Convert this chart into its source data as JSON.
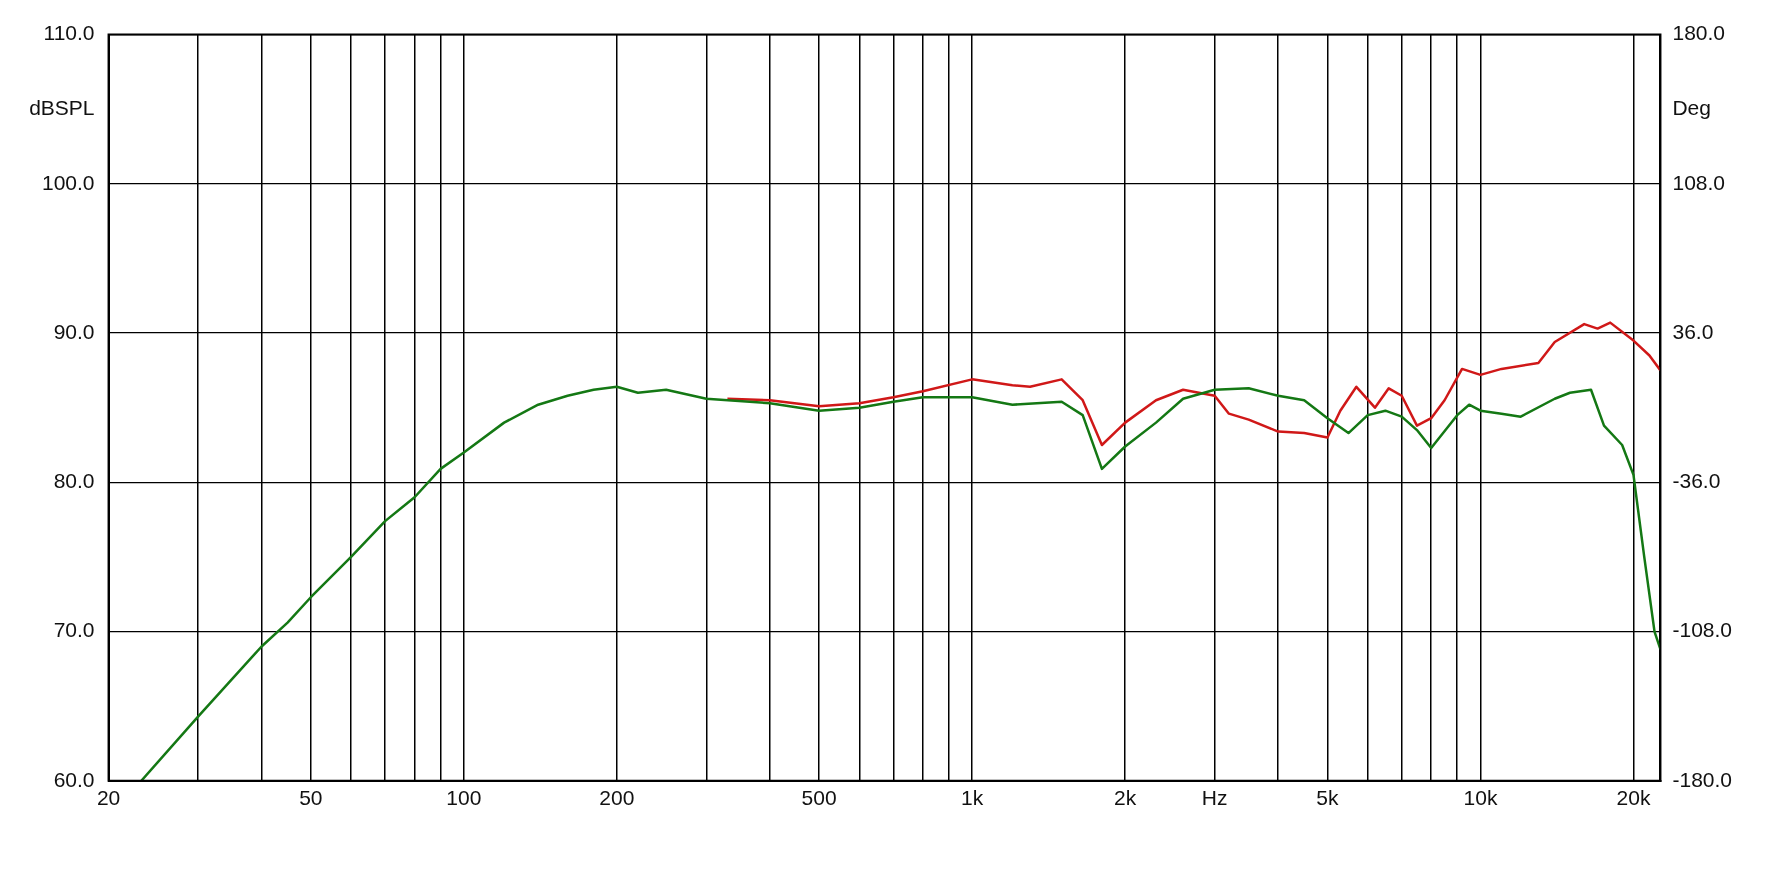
{
  "chart_data": {
    "type": "line",
    "ylabel": "dBSPL",
    "y2label": "Deg",
    "log": "x",
    "grid": true,
    "xlim": [
      20,
      22600
    ],
    "xticks": [
      20,
      {
        "value": 30,
        "label": null
      },
      {
        "value": 40,
        "label": null
      },
      50,
      {
        "value": 60,
        "label": null
      },
      {
        "value": 70,
        "label": null
      },
      {
        "value": 80,
        "label": null
      },
      {
        "value": 90,
        "label": null
      },
      100,
      200,
      {
        "value": 300,
        "label": null
      },
      {
        "value": 400,
        "label": null
      },
      500,
      {
        "value": 600,
        "label": null
      },
      {
        "value": 700,
        "label": null
      },
      {
        "value": 800,
        "label": null
      },
      {
        "value": 900,
        "label": null
      },
      {
        "value": 1000,
        "label": "1k"
      },
      {
        "value": 2000,
        "label": "2k"
      },
      {
        "value": 3000,
        "label": "Hz"
      },
      {
        "value": 4000,
        "label": null
      },
      {
        "value": 5000,
        "label": "5k"
      },
      {
        "value": 6000,
        "label": null
      },
      {
        "value": 7000,
        "label": null
      },
      {
        "value": 8000,
        "label": null
      },
      {
        "value": 9000,
        "label": null
      },
      {
        "value": 10000,
        "label": "10k"
      },
      {
        "value": 20000,
        "label": "20k"
      }
    ],
    "ylim": [
      60,
      110
    ],
    "yticks": [
      {
        "value": 60,
        "label": "60.0"
      },
      {
        "value": 70,
        "label": "70.0"
      },
      {
        "value": 80,
        "label": "80.0"
      },
      {
        "value": 90,
        "label": "90.0"
      },
      {
        "value": 100,
        "label": "100.0"
      },
      {
        "value": 110,
        "label": "110.0"
      }
    ],
    "y2lim": [
      -180,
      180
    ],
    "y2ticks": [
      {
        "value": -180,
        "label": "-180.0"
      },
      {
        "value": -108,
        "label": "-108.0"
      },
      {
        "value": -36,
        "label": "-36.0"
      },
      {
        "value": 36,
        "label": "36.0"
      },
      {
        "value": 108,
        "label": "108.0"
      },
      {
        "value": 180,
        "label": "180.0"
      }
    ],
    "series": [
      {
        "color": "#147814",
        "x": [
          23.2,
          30,
          40,
          45,
          50,
          60,
          70,
          80,
          90,
          100,
          120,
          140,
          160,
          180,
          200,
          220,
          250,
          300,
          400,
          500,
          600,
          700,
          800,
          1000,
          1200,
          1500,
          1650,
          1800,
          2000,
          2300,
          2600,
          3000,
          3500,
          4000,
          4500,
          5000,
          5500,
          6000,
          6500,
          7000,
          7500,
          8000,
          9000,
          9500,
          10000,
          11000,
          12000,
          14000,
          15000,
          16500,
          17500,
          19000,
          20000,
          21000,
          22000,
          22600
        ],
        "values": [
          60,
          64.3,
          69.0,
          70.6,
          72.3,
          75.0,
          77.4,
          79.0,
          80.9,
          82.0,
          84.0,
          85.2,
          85.8,
          86.2,
          86.4,
          86.0,
          86.2,
          85.6,
          85.3,
          84.8,
          85.0,
          85.4,
          85.7,
          85.7,
          85.2,
          85.4,
          84.5,
          80.9,
          82.4,
          84.0,
          85.6,
          86.2,
          86.3,
          85.8,
          85.5,
          84.3,
          83.3,
          84.5,
          84.8,
          84.4,
          83.5,
          82.3,
          84.5,
          85.2,
          84.8,
          84.6,
          84.4,
          85.6,
          86.0,
          86.2,
          83.8,
          82.5,
          80.5,
          75.0,
          70.0,
          68.8
        ]
      },
      {
        "color": "#d01818",
        "x": [
          330,
          400,
          500,
          600,
          700,
          800,
          1000,
          1200,
          1300,
          1500,
          1650,
          1800,
          2000,
          2300,
          2600,
          3000,
          3200,
          3500,
          4000,
          4500,
          5000,
          5300,
          5700,
          6200,
          6600,
          7000,
          7500,
          8000,
          8500,
          9200,
          10000,
          11000,
          13000,
          14000,
          16000,
          17000,
          18000,
          20000,
          21500,
          22600
        ],
        "values": [
          85.6,
          85.5,
          85.1,
          85.3,
          85.7,
          86.1,
          86.9,
          86.5,
          86.4,
          86.9,
          85.5,
          82.5,
          84.0,
          85.5,
          86.2,
          85.8,
          84.6,
          84.2,
          83.4,
          83.3,
          83.0,
          84.8,
          86.4,
          85.0,
          86.3,
          85.8,
          83.8,
          84.3,
          85.5,
          87.6,
          87.2,
          87.6,
          88.0,
          89.4,
          90.6,
          90.3,
          90.7,
          89.5,
          88.5,
          87.5
        ]
      }
    ]
  }
}
